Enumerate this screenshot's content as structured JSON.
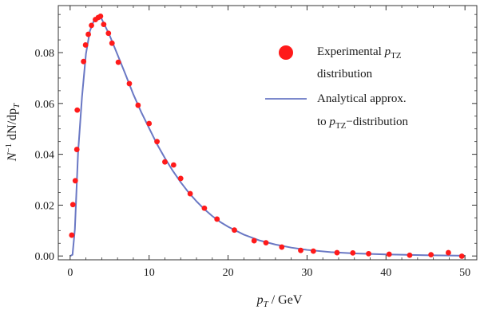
{
  "chart_data": {
    "type": "scatter",
    "title": "",
    "xlabel": "p_T / GeV",
    "ylabel": "N^{-1} dN/dp_T",
    "xlim": [
      -1.5,
      51.5
    ],
    "ylim": [
      -0.0015,
      0.0985
    ],
    "x_ticks": [
      0,
      10,
      20,
      30,
      40,
      50
    ],
    "x_tick_labels": [
      "0",
      "10",
      "20",
      "30",
      "40",
      "50"
    ],
    "y_ticks": [
      0.0,
      0.02,
      0.04,
      0.06,
      0.08
    ],
    "y_tick_labels": [
      "0.00",
      "0.02",
      "0.04",
      "0.06",
      "0.08"
    ],
    "grid": false,
    "legend_position": "top-right",
    "series": [
      {
        "name": "Experimental p_TZ distribution",
        "kind": "scatter",
        "color": "#ff1a1a",
        "points": [
          [
            0.2,
            0.0082
          ],
          [
            0.35,
            0.0202
          ],
          [
            0.65,
            0.0296
          ],
          [
            0.85,
            0.0419
          ],
          [
            0.9,
            0.0574
          ],
          [
            1.7,
            0.0765
          ],
          [
            1.95,
            0.083
          ],
          [
            2.3,
            0.0872
          ],
          [
            2.7,
            0.0907
          ],
          [
            3.2,
            0.093
          ],
          [
            3.55,
            0.0938
          ],
          [
            3.85,
            0.0943
          ],
          [
            4.25,
            0.0911
          ],
          [
            4.85,
            0.0876
          ],
          [
            5.3,
            0.0837
          ],
          [
            6.1,
            0.0762
          ],
          [
            7.5,
            0.0678
          ],
          [
            8.6,
            0.0593
          ],
          [
            10.0,
            0.0521
          ],
          [
            11.0,
            0.045
          ],
          [
            12.0,
            0.037
          ],
          [
            13.1,
            0.0358
          ],
          [
            14.0,
            0.0305
          ],
          [
            15.2,
            0.0245
          ],
          [
            17.0,
            0.0188
          ],
          [
            18.6,
            0.0145
          ],
          [
            20.8,
            0.0102
          ],
          [
            23.3,
            0.006
          ],
          [
            24.8,
            0.0052
          ],
          [
            26.8,
            0.0035
          ],
          [
            29.2,
            0.0022
          ],
          [
            30.8,
            0.0019
          ],
          [
            33.8,
            0.0013
          ],
          [
            35.8,
            0.0012
          ],
          [
            37.8,
            0.0009
          ],
          [
            40.4,
            0.0007
          ],
          [
            43.0,
            0.0003
          ],
          [
            45.7,
            0.0005
          ],
          [
            47.9,
            0.0013
          ],
          [
            49.6,
            -0.0001
          ]
        ]
      },
      {
        "name": "Analytical approx. to p_TZ-distribution",
        "kind": "line",
        "color": "#6a78c4",
        "points": [
          [
            0.0,
            0.0
          ],
          [
            0.3,
            0.0005
          ],
          [
            0.6,
            0.0105
          ],
          [
            1.0,
            0.0405
          ],
          [
            1.5,
            0.0625
          ],
          [
            2.0,
            0.0795
          ],
          [
            2.5,
            0.0885
          ],
          [
            3.0,
            0.0925
          ],
          [
            3.5,
            0.094
          ],
          [
            4.0,
            0.0932
          ],
          [
            5.0,
            0.0868
          ],
          [
            6.0,
            0.0792
          ],
          [
            7.0,
            0.0715
          ],
          [
            8.0,
            0.0636
          ],
          [
            9.0,
            0.0566
          ],
          [
            10.0,
            0.0503
          ],
          [
            11.0,
            0.044
          ],
          [
            12.0,
            0.0385
          ],
          [
            13.0,
            0.0335
          ],
          [
            14.0,
            0.029
          ],
          [
            15.0,
            0.025
          ],
          [
            16.0,
            0.0215
          ],
          [
            17.0,
            0.0184
          ],
          [
            18.0,
            0.0157
          ],
          [
            19.0,
            0.0134
          ],
          [
            20.0,
            0.0115
          ],
          [
            22.0,
            0.0084
          ],
          [
            24.0,
            0.0061
          ],
          [
            26.0,
            0.0045
          ],
          [
            28.0,
            0.0033
          ],
          [
            30.0,
            0.0024
          ],
          [
            33.0,
            0.0015
          ],
          [
            36.0,
            0.001
          ],
          [
            40.0,
            0.0006
          ],
          [
            45.0,
            0.0003
          ],
          [
            50.0,
            0.0001
          ]
        ]
      }
    ],
    "legend": {
      "scatter_label_line1": "Experimental ",
      "scatter_label_sub": "TZ",
      "scatter_label_line2": "distribution",
      "line_label_line1": "Analytical approx.",
      "line_label_line2_prefix": "to ",
      "line_label_sub": "TZ",
      "line_label_line2_suffix": "−distribution"
    },
    "axis_text": {
      "x_p": "p",
      "x_sub": "T",
      "x_unit": " / GeV",
      "y_n": "N",
      "y_sup": "−1",
      "y_rest": " dN/dp",
      "y_sub": "T"
    }
  }
}
